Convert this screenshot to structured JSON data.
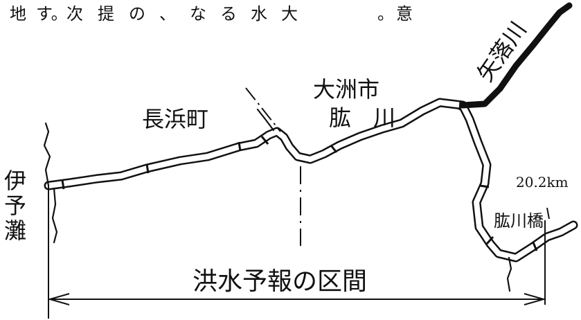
{
  "top_text_fragments": [
    {
      "id": "c1",
      "text": "地"
    },
    {
      "id": "c2",
      "text": "す。"
    },
    {
      "id": "c3",
      "text": "次"
    },
    {
      "id": "c4",
      "text": "提"
    },
    {
      "id": "c5",
      "text": "の"
    },
    {
      "id": "c6",
      "text": "、"
    },
    {
      "id": "c7",
      "text": "な"
    },
    {
      "id": "c8",
      "text": "る"
    },
    {
      "id": "c9",
      "text": "水"
    },
    {
      "id": "c10",
      "text": "大"
    },
    {
      "id": "c11",
      "text": "。"
    },
    {
      "id": "c12",
      "text": "意"
    }
  ],
  "labels": {
    "yahatagawa": "矢落川",
    "ozu_city": "大洲市",
    "hijikawa": "肱　川",
    "nagahama": "長浜町",
    "iyo_nada": "伊予灘",
    "distance": "20.2km",
    "hijikawa_bridge": "肱川橋",
    "section": "洪水予報の区間"
  }
}
